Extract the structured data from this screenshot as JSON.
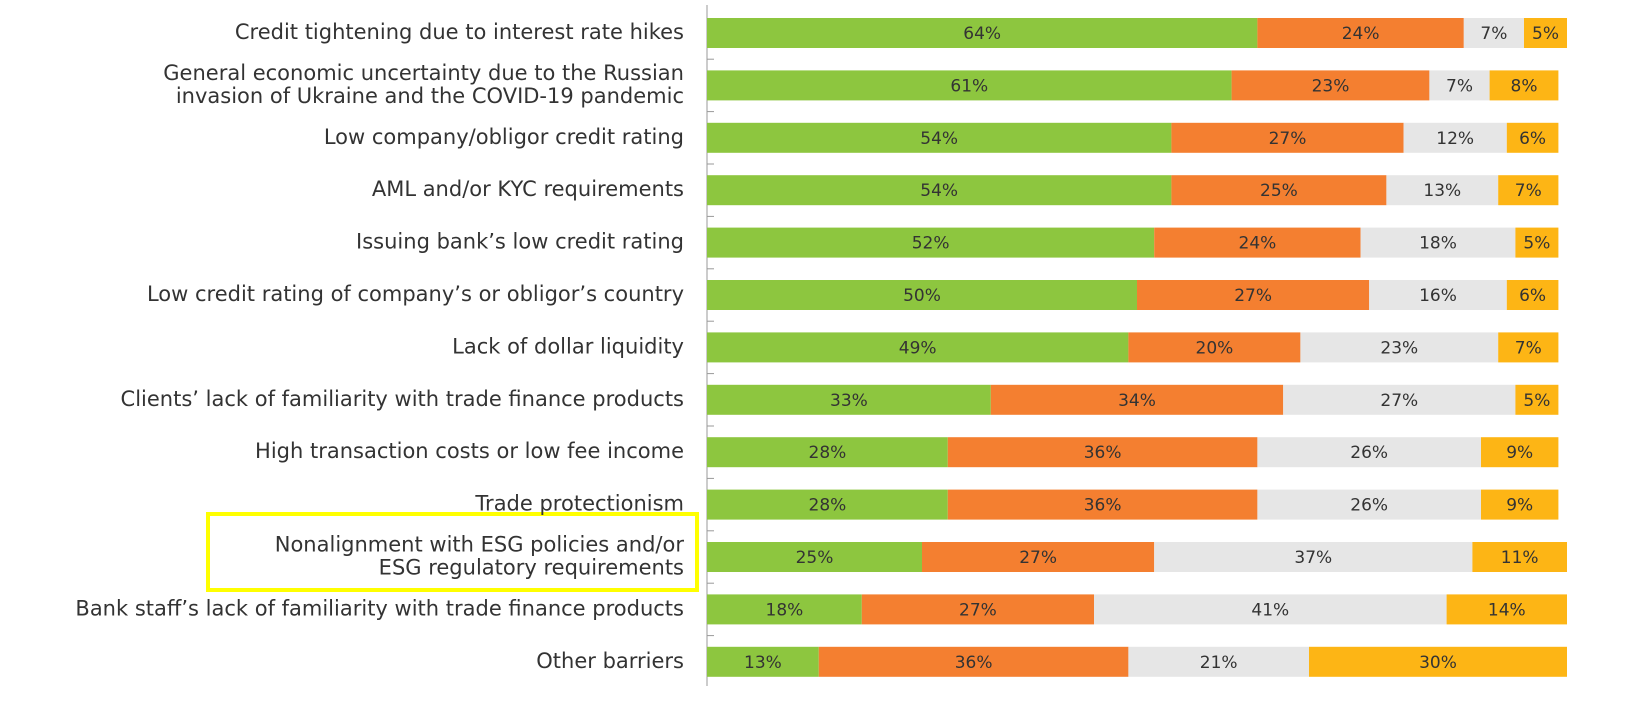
{
  "chart_data": {
    "type": "stacked-bar-horizontal",
    "categories": [
      [
        "Credit tightening due to interest rate hikes"
      ],
      [
        "General economic uncertainty due to the Russian",
        "invasion of Ukraine and the COVID-19 pandemic"
      ],
      [
        "Low company/obligor credit rating"
      ],
      [
        "AML and/or KYC requirements"
      ],
      [
        "Issuing bank’s low credit rating"
      ],
      [
        "Low credit rating of company’s or obligor’s country"
      ],
      [
        "Lack of dollar liquidity"
      ],
      [
        "Clients’ lack of familiarity with trade finance products"
      ],
      [
        "High transaction costs or low fee income"
      ],
      [
        "Trade protectionism"
      ],
      [
        "Nonalignment with ESG policies and/or",
        "ESG regulatory requirements"
      ],
      [
        "Bank staff’s lack of familiarity with trade finance products"
      ],
      [
        "Other barriers"
      ]
    ],
    "series": [
      {
        "color": "#8dc63f",
        "values": [
          64,
          61,
          54,
          54,
          52,
          50,
          49,
          33,
          28,
          28,
          25,
          18,
          13
        ],
        "value_labels": [
          "64%",
          "61%",
          "54%",
          "54%",
          "52%",
          "50%",
          "49%",
          "33%",
          "28%",
          "28%",
          "25%",
          "18%",
          "13%"
        ]
      },
      {
        "color": "#f47f30",
        "values": [
          24,
          23,
          27,
          25,
          24,
          27,
          20,
          34,
          36,
          36,
          27,
          27,
          36
        ],
        "value_labels": [
          "24%",
          "23%",
          "27%",
          "25%",
          "24%",
          "27%",
          "20%",
          "34%",
          "36%",
          "36%",
          "27%",
          "27%",
          "36%"
        ]
      },
      {
        "color": "#e6e6e6",
        "values": [
          7,
          7,
          12,
          13,
          18,
          16,
          23,
          27,
          26,
          26,
          37,
          41,
          21
        ],
        "value_labels": [
          "7%",
          "7%",
          "12%",
          "13%",
          "18%",
          "16%",
          "23%",
          "27%",
          "26%",
          "26%",
          "37%",
          "41%",
          "21%"
        ]
      },
      {
        "color": "#fdb515",
        "values": [
          5,
          8,
          6,
          7,
          5,
          6,
          7,
          5,
          9,
          9,
          11,
          14,
          30
        ],
        "value_labels": [
          "5%",
          "8%",
          "6%",
          "7%",
          "5%",
          "6%",
          "7%",
          "5%",
          "9%",
          "9%",
          "11%",
          "14%",
          "30%"
        ]
      }
    ],
    "xlim": [
      0,
      100
    ]
  }
}
